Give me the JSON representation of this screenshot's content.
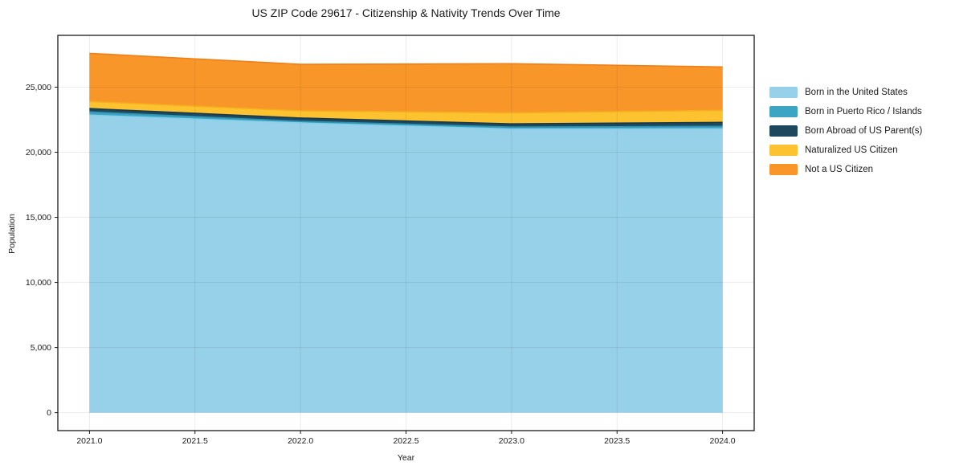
{
  "chart_data": {
    "type": "area",
    "stacked": true,
    "title": "US ZIP Code 29617 - Citizenship & Nativity Trends Over Time",
    "xlabel": "Year",
    "ylabel": "Population",
    "x": [
      2021,
      2022,
      2023,
      2024
    ],
    "series": [
      {
        "name": "Born in the United States",
        "values": [
          22850,
          22250,
          21780,
          21800
        ],
        "color": "#97D0E9",
        "edge_color": "#87CEEB"
      },
      {
        "name": "Born in Puerto Rico / Islands",
        "values": [
          250,
          130,
          150,
          190
        ],
        "color": "#3CA5C3",
        "edge_color": "#2F94B1"
      },
      {
        "name": "Born Abroad of US Parent(s)",
        "values": [
          250,
          250,
          250,
          310
        ],
        "color": "#1E485D",
        "edge_color": "#173A4C"
      },
      {
        "name": "Naturalized US Citizen",
        "values": [
          550,
          550,
          850,
          925
        ],
        "color": "#FCC230",
        "edge_color": "#F5AE1E"
      },
      {
        "name": "Not a US Citizen",
        "values": [
          3700,
          3570,
          3770,
          3330
        ],
        "color": "#F8962A",
        "edge_color": "#EF7F17"
      }
    ],
    "x_tick_values": [
      2021.0,
      2021.5,
      2022.0,
      2022.5,
      2023.0,
      2023.5,
      2024.0
    ],
    "x_tick_labels": [
      "2021.0",
      "2021.5",
      "2022.0",
      "2022.5",
      "2023.0",
      "2023.5",
      "2024.0"
    ],
    "y_tick_values": [
      0,
      5000,
      10000,
      15000,
      20000,
      25000
    ],
    "y_tick_labels": [
      "0",
      "5,000",
      "10,000",
      "15,000",
      "20,000",
      "25,000"
    ],
    "x_range": [
      2020.85,
      2024.15
    ],
    "y_range": [
      -1380,
      28980
    ],
    "grid": true,
    "legend_position": "right-outside",
    "grid_color": "rgba(0,0,0,0.08)",
    "spine_color": "#1a1a1a",
    "background_color": "#ffffff"
  }
}
